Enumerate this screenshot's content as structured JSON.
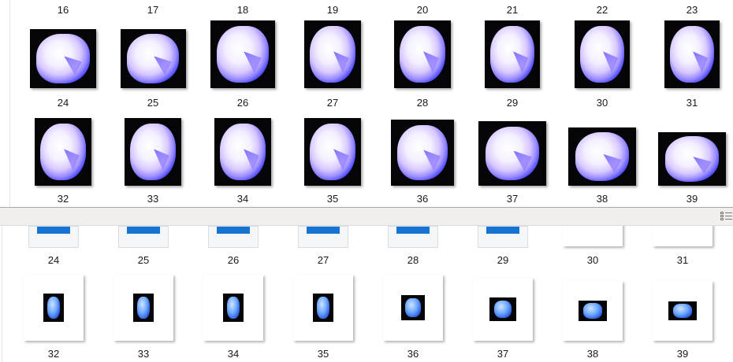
{
  "top_pane": {
    "header_labels": [
      "16",
      "17",
      "18",
      "19",
      "20",
      "21",
      "22",
      "23"
    ],
    "rows": [
      [
        "24",
        "25",
        "26",
        "27",
        "28",
        "29",
        "30",
        "31"
      ],
      [
        "32",
        "33",
        "34",
        "35",
        "36",
        "37",
        "38",
        "39"
      ]
    ],
    "thumbnail_icon": "gem-image-thumbnail"
  },
  "divider": {
    "view_icon": "details-view-icon"
  },
  "bottom_pane": {
    "rows": [
      [
        "24",
        "25",
        "26",
        "27",
        "28",
        "29",
        "30",
        "31"
      ],
      [
        "32",
        "33",
        "34",
        "35",
        "36",
        "37",
        "38",
        "39"
      ]
    ],
    "thumbnail_icon": "gem-image-thumbnail",
    "colors": {
      "file_icon_blue": "#1673d2"
    }
  }
}
